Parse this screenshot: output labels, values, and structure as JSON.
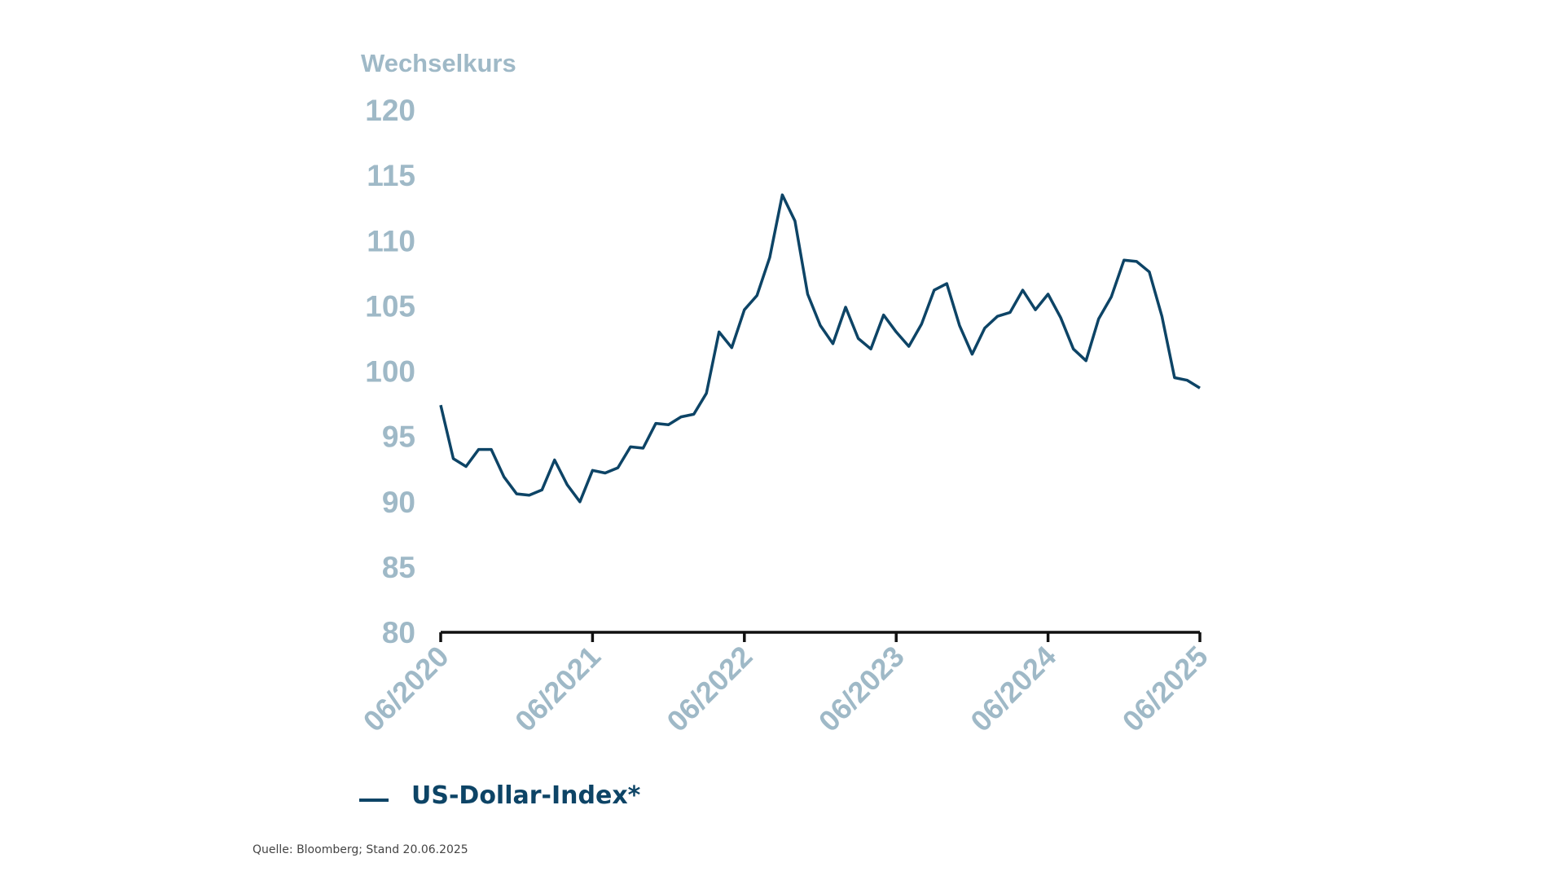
{
  "chart_data": {
    "type": "line",
    "ylabel": "Wechselkurs",
    "ylim": [
      80,
      120
    ],
    "yticks": [
      120,
      115,
      110,
      105,
      100,
      95,
      90,
      85,
      80
    ],
    "xlim": [
      "2020-06",
      "2025-06"
    ],
    "xticks": [
      {
        "date": "2020-06",
        "label": "06/2020"
      },
      {
        "date": "2021-06",
        "label": "06/2021"
      },
      {
        "date": "2022-06",
        "label": "06/2022"
      },
      {
        "date": "2023-06",
        "label": "06/2023"
      },
      {
        "date": "2024-06",
        "label": "06/2024"
      },
      {
        "date": "2025-06",
        "label": "06/2025"
      }
    ],
    "grid": false,
    "legend_position": "bottom-left",
    "series": [
      {
        "name": "US-Dollar-Index*",
        "color": "#0d4466",
        "x": [
          "2020-06",
          "2020-07",
          "2020-08",
          "2020-09",
          "2020-10",
          "2020-11",
          "2020-12",
          "2021-01",
          "2021-02",
          "2021-03",
          "2021-04",
          "2021-05",
          "2021-06",
          "2021-07",
          "2021-08",
          "2021-09",
          "2021-10",
          "2021-11",
          "2021-12",
          "2022-01",
          "2022-02",
          "2022-03",
          "2022-04",
          "2022-05",
          "2022-06",
          "2022-07",
          "2022-08",
          "2022-09",
          "2022-10",
          "2022-11",
          "2022-12",
          "2023-01",
          "2023-02",
          "2023-03",
          "2023-04",
          "2023-05",
          "2023-06",
          "2023-07",
          "2023-08",
          "2023-09",
          "2023-10",
          "2023-11",
          "2023-12",
          "2024-01",
          "2024-02",
          "2024-03",
          "2024-04",
          "2024-05",
          "2024-06",
          "2024-07",
          "2024-08",
          "2024-09",
          "2024-10",
          "2024-11",
          "2024-12",
          "2025-01",
          "2025-02",
          "2025-03",
          "2025-04",
          "2025-05",
          "2025-06"
        ],
        "y": [
          97.4,
          93.3,
          92.7,
          94.0,
          94.0,
          91.9,
          90.6,
          90.5,
          90.9,
          93.2,
          91.3,
          90.0,
          92.4,
          92.2,
          92.6,
          94.2,
          94.1,
          96.0,
          95.9,
          96.5,
          96.7,
          98.3,
          103.0,
          101.8,
          104.7,
          105.8,
          108.7,
          113.5,
          111.5,
          105.9,
          103.5,
          102.1,
          104.9,
          102.5,
          101.7,
          104.3,
          103.0,
          101.9,
          103.6,
          106.2,
          106.7,
          103.5,
          101.3,
          103.3,
          104.2,
          104.5,
          106.2,
          104.7,
          105.9,
          104.1,
          101.7,
          100.8,
          104.0,
          105.7,
          108.5,
          108.4,
          107.6,
          104.2,
          99.5,
          99.3,
          98.7
        ]
      }
    ]
  },
  "source": "Quelle: Bloomberg; Stand 20.06.2025"
}
